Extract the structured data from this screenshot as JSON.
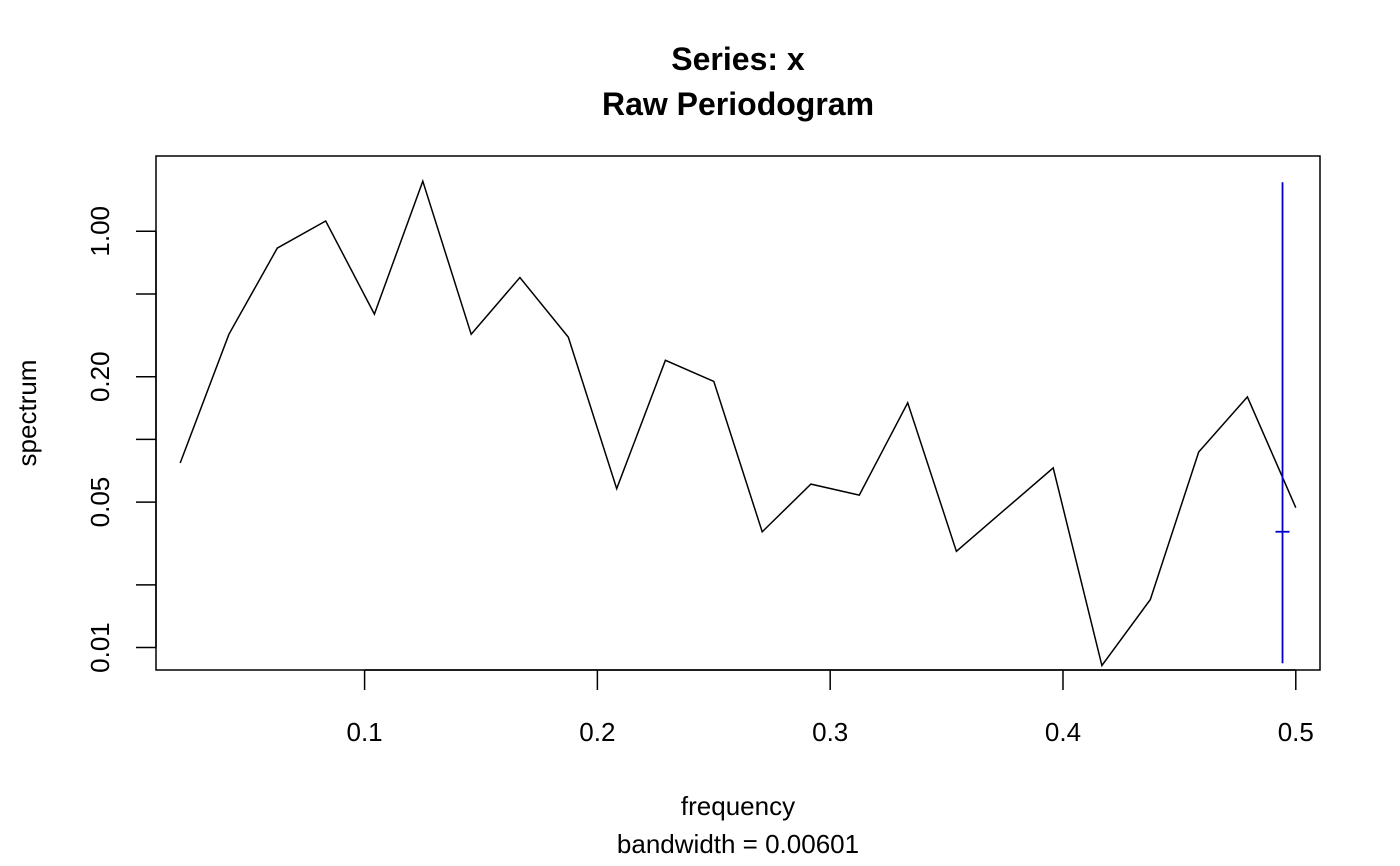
{
  "chart_data": {
    "type": "line",
    "title": "Series: x",
    "subtitle": "Raw Periodogram",
    "xlabel": "frequency",
    "xsublabel": "bandwidth = 0.00601",
    "ylabel": "spectrum",
    "y_scale": "log",
    "xlim": [
      0.0104,
      0.5104
    ],
    "ylim": [
      0.0078,
      2.3
    ],
    "x_ticks": [
      {
        "value": 0.1,
        "label": "0.1"
      },
      {
        "value": 0.2,
        "label": "0.2"
      },
      {
        "value": 0.3,
        "label": "0.3"
      },
      {
        "value": 0.4,
        "label": "0.4"
      },
      {
        "value": 0.5,
        "label": "0.5"
      }
    ],
    "y_ticks": [
      {
        "value": 0.01,
        "label": "0.01"
      },
      {
        "value": 0.02,
        "label": ""
      },
      {
        "value": 0.05,
        "label": "0.05"
      },
      {
        "value": 0.1,
        "label": ""
      },
      {
        "value": 0.2,
        "label": "0.20"
      },
      {
        "value": 0.5,
        "label": ""
      },
      {
        "value": 1.0,
        "label": "1.00"
      }
    ],
    "series": [
      {
        "color": "#000000",
        "x": [
          0.0208,
          0.0417,
          0.0625,
          0.0833,
          0.1042,
          0.125,
          0.1458,
          0.1667,
          0.1875,
          0.2083,
          0.2292,
          0.25,
          0.2708,
          0.2917,
          0.3125,
          0.3333,
          0.3542,
          0.375,
          0.3958,
          0.4167,
          0.4375,
          0.4583,
          0.4792,
          0.5
        ],
        "y": [
          0.077,
          0.32,
          0.83,
          1.12,
          0.4,
          1.74,
          0.32,
          0.6,
          0.31,
          0.058,
          0.24,
          0.19,
          0.036,
          0.061,
          0.054,
          0.15,
          0.029,
          0.046,
          0.073,
          0.0082,
          0.017,
          0.087,
          0.16,
          0.047
        ]
      }
    ],
    "ci_bar": {
      "color": "#0000CD",
      "x": 0.4943,
      "y_low": 0.0084,
      "y_high": 1.72,
      "y_center": 0.036
    }
  }
}
